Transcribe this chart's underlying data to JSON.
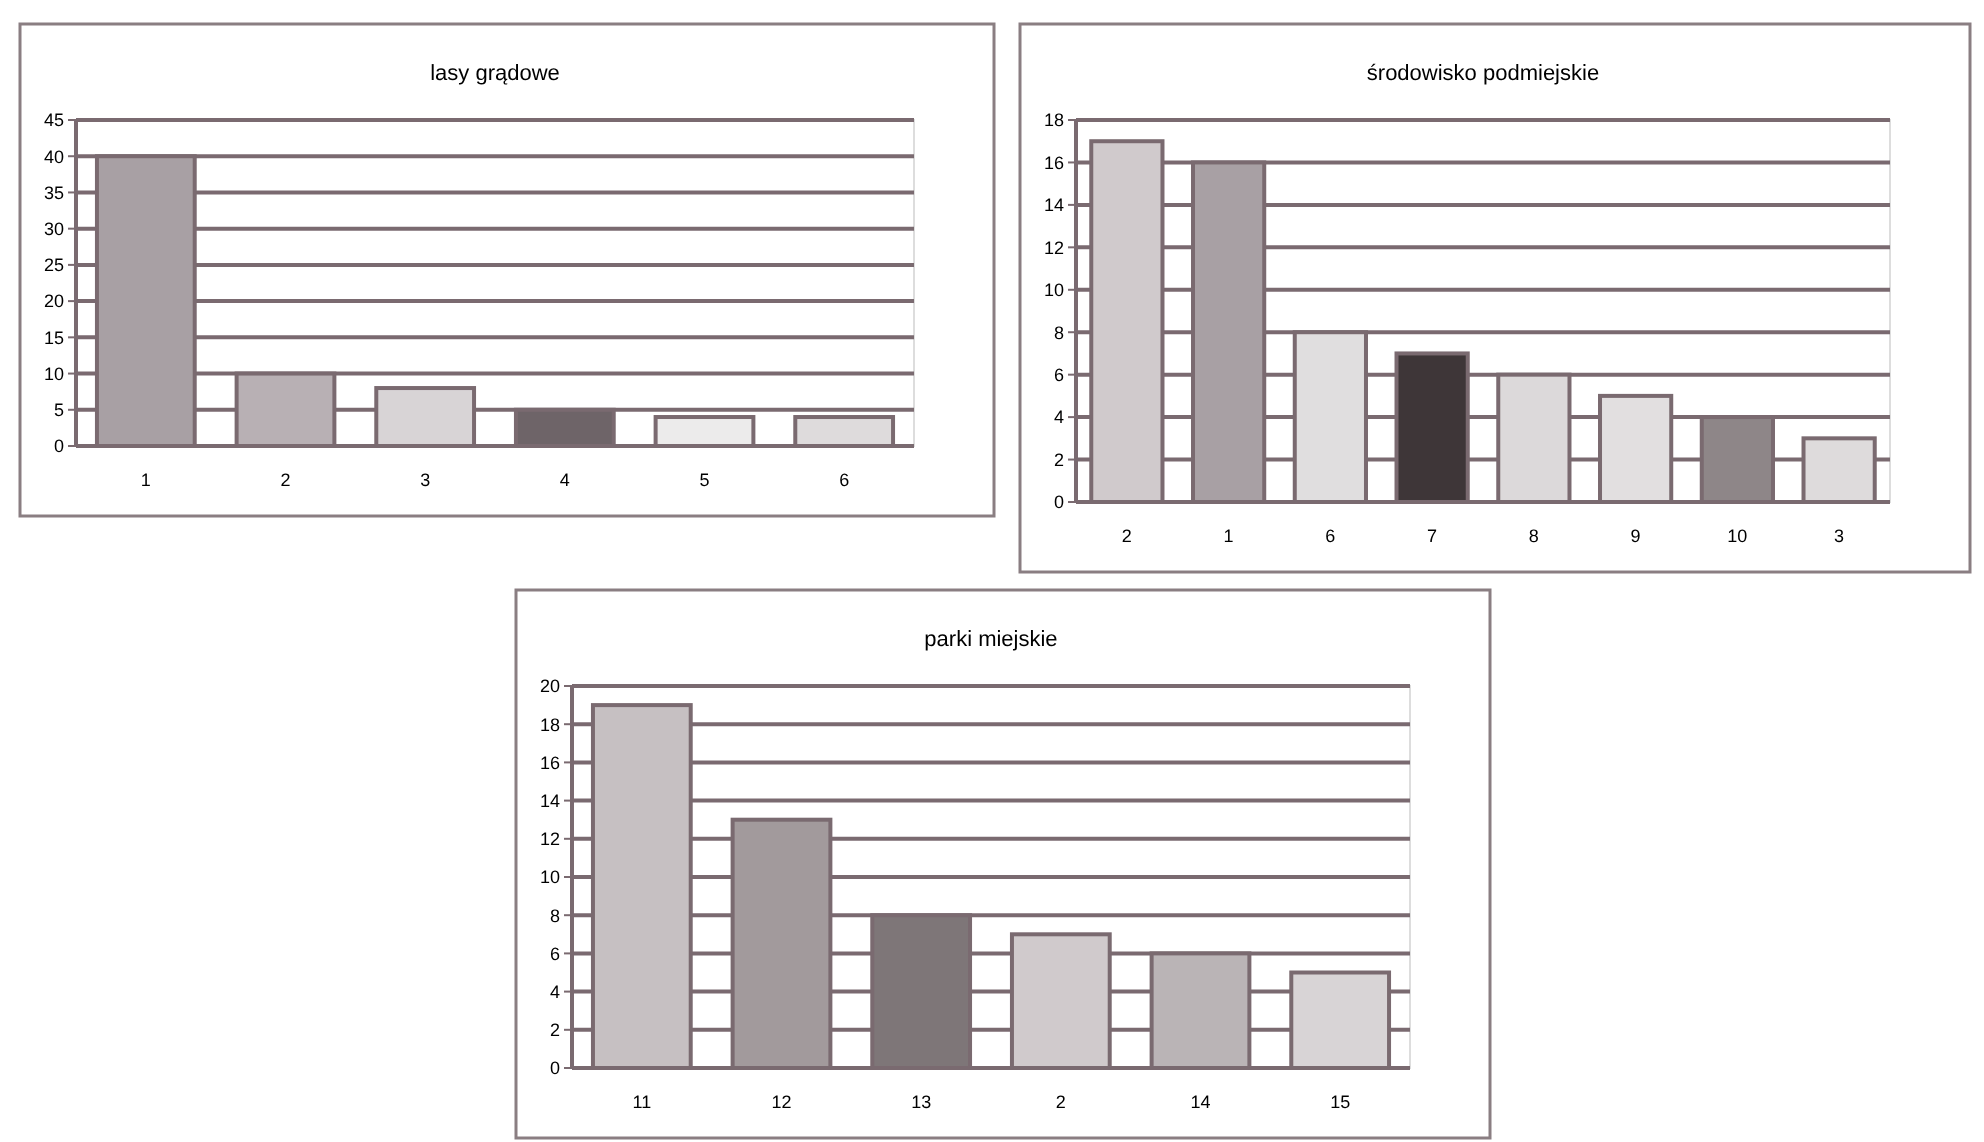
{
  "chart_data": [
    {
      "type": "bar",
      "title": "lasy grądowe",
      "categories": [
        "1",
        "2",
        "3",
        "4",
        "5",
        "6"
      ],
      "values": [
        40,
        10,
        8,
        5,
        4,
        4
      ],
      "colors": [
        "#a8a0a4",
        "#b8b0b4",
        "#d8d4d6",
        "#6e6468",
        "#ecebeb",
        "#dedbdc"
      ],
      "ylim": [
        0,
        45
      ],
      "yticks": [
        0,
        5,
        10,
        15,
        20,
        25,
        30,
        35,
        40,
        45
      ],
      "grid": "y"
    },
    {
      "type": "bar",
      "title": "środowisko podmiejskie",
      "categories": [
        "2",
        "1",
        "6",
        "7",
        "8",
        "9",
        "10",
        "3"
      ],
      "values": [
        17,
        16,
        8,
        7,
        6,
        5,
        4,
        3
      ],
      "colors": [
        "#d0cacc",
        "#a8a0a4",
        "#e0dedf",
        "#3e3638",
        "#dcd9da",
        "#e2dfe0",
        "#8e8688",
        "#dedbdc"
      ],
      "ylim": [
        0,
        18
      ],
      "yticks": [
        0,
        2,
        4,
        6,
        8,
        10,
        12,
        14,
        16,
        18
      ],
      "grid": "y"
    },
    {
      "type": "bar",
      "title": "parki miejskie",
      "categories": [
        "11",
        "12",
        "13",
        "2",
        "14",
        "15"
      ],
      "values": [
        19,
        13,
        8,
        7,
        6,
        5
      ],
      "colors": [
        "#c6c0c2",
        "#a29a9c",
        "#7e7678",
        "#d0cacc",
        "#bab4b6",
        "#d8d4d6"
      ],
      "ylim": [
        0,
        20
      ],
      "yticks": [
        0,
        2,
        4,
        6,
        8,
        10,
        12,
        14,
        16,
        18,
        20
      ],
      "grid": "y"
    }
  ]
}
